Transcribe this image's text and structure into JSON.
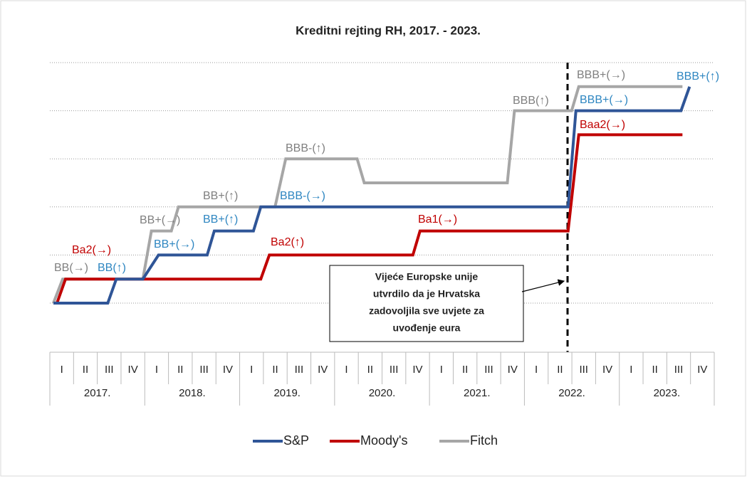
{
  "chart_data": {
    "type": "line",
    "title": "Kreditni rejting RH, 2017. - 2023.",
    "xlim": [
      0,
      28
    ],
    "ylim": [
      0,
      5
    ],
    "yticks": [
      0,
      1,
      2,
      3,
      4,
      5
    ],
    "grid": true,
    "quarters": [
      "I",
      "II",
      "III",
      "IV",
      "I",
      "II",
      "III",
      "IV",
      "I",
      "II",
      "III",
      "IV",
      "I",
      "II",
      "III",
      "IV",
      "I",
      "II",
      "III",
      "IV",
      "I",
      "II",
      "III",
      "IV",
      "I",
      "II",
      "III",
      "IV"
    ],
    "years": [
      "2017.",
      "2018.",
      "2019.",
      "2020.",
      "2021.",
      "2022.",
      "2023."
    ],
    "series": [
      {
        "name": "S&P",
        "color": "#2F5597",
        "x": [
          0.15,
          2.44,
          2.8,
          3.92,
          4.58,
          6.63,
          6.93,
          8.58,
          8.89,
          21.84,
          22.17,
          26.6,
          26.96
        ],
        "values": [
          0,
          0,
          0.5,
          0.5,
          1,
          1,
          1.5,
          1.5,
          2,
          2,
          4,
          4,
          4.5
        ]
      },
      {
        "name": "Moody's",
        "color": "#C00000",
        "x": [
          0.3,
          0.66,
          8.89,
          9.25,
          15.3,
          15.6,
          21.84,
          22.29,
          26.66
        ],
        "values": [
          0,
          0.5,
          0.5,
          1,
          1,
          1.5,
          1.5,
          3.5,
          3.5
        ]
      },
      {
        "name": "Fitch",
        "color": "#A6A6A6",
        "x": [
          0.15,
          0.54,
          3.92,
          4.28,
          5.12,
          5.42,
          9.49,
          9.94,
          12.95,
          13.25,
          19.28,
          19.58,
          21.99,
          22.29,
          26.66
        ],
        "values": [
          0,
          0.5,
          0.5,
          1.5,
          1.5,
          2,
          2,
          3,
          3,
          2.5,
          2.5,
          4,
          4,
          4.5,
          4.5
        ]
      }
    ],
    "annotations": [
      {
        "text": "BB(→)",
        "color": "#7F7F7F"
      },
      {
        "text": "BB(↑)",
        "color": "#2E86C1"
      },
      {
        "text": "Ba2(→)",
        "color": "#C00000"
      },
      {
        "text": "BB+(→)",
        "color": "#7F7F7F"
      },
      {
        "text": "BB+(→)",
        "color": "#2E86C1"
      },
      {
        "text": "BB+(↑)",
        "color": "#7F7F7F"
      },
      {
        "text": "BB+(↑)",
        "color": "#2E86C1"
      },
      {
        "text": "BBB-(↑)",
        "color": "#7F7F7F"
      },
      {
        "text": "BBB-(→)",
        "color": "#2E86C1"
      },
      {
        "text": "Ba2(↑)",
        "color": "#C00000"
      },
      {
        "text": "Ba1(→)",
        "color": "#C00000"
      },
      {
        "text": "BBB(↑)",
        "color": "#7F7F7F"
      },
      {
        "text": "BBB+(→)",
        "color": "#7F7F7F"
      },
      {
        "text": "BBB+(→)",
        "color": "#2E86C1"
      },
      {
        "text": "Baa2(→)",
        "color": "#C00000"
      },
      {
        "text": "BBB+(↑)",
        "color": "#2E86C1"
      }
    ],
    "note": [
      "Vijeće Europske unije",
      "utvrdilo da je Hrvatska",
      "zadovoljila sve uvjete za",
      "uvođenje eura"
    ]
  }
}
